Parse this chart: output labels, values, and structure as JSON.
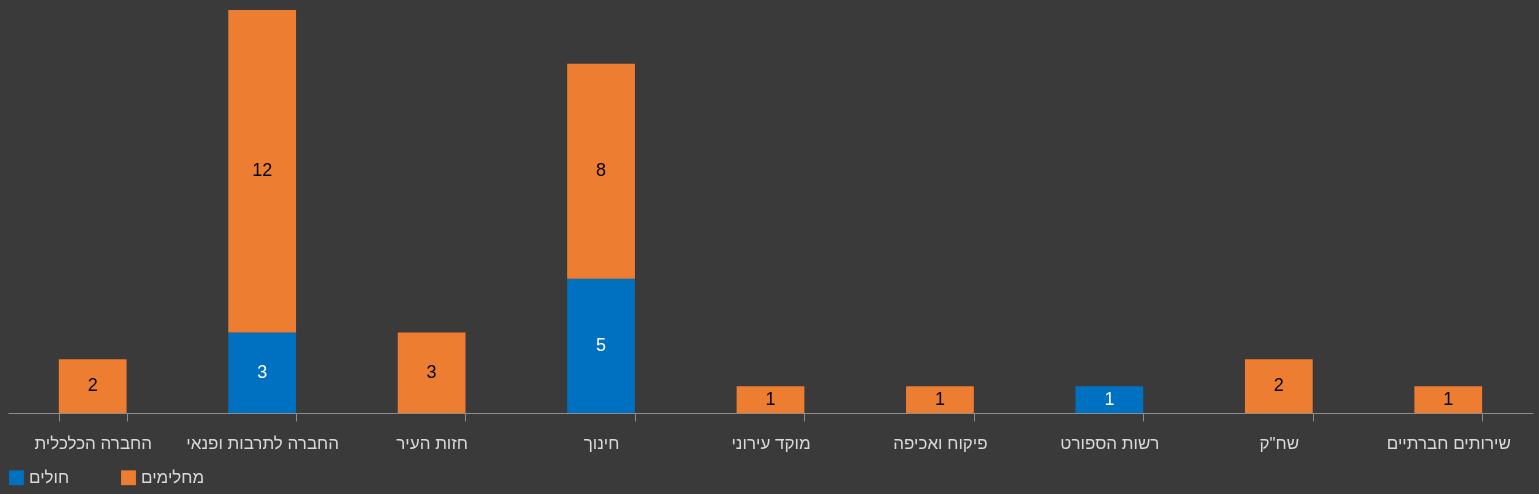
{
  "chart_data": {
    "type": "bar",
    "stacked": true,
    "data_labels": true,
    "legend": "bottom",
    "grid": false,
    "categories": [
      "החברה הכלכלית",
      "החברה לתרבות ופנאי",
      "חזות העיר",
      "חינוך",
      "מוקד עירוני",
      "פיקוח ואכיפה",
      "רשות הספורט",
      "שח\"ק",
      "שירותים חברתיים"
    ],
    "series": [
      {
        "name": "חולים",
        "color": "#0070c0",
        "values": [
          null,
          3,
          null,
          5,
          null,
          null,
          1,
          null,
          null
        ]
      },
      {
        "name": "מחלימים",
        "color": "#ed7d31",
        "values": [
          2,
          12,
          3,
          8,
          1,
          1,
          null,
          2,
          1
        ]
      }
    ]
  }
}
